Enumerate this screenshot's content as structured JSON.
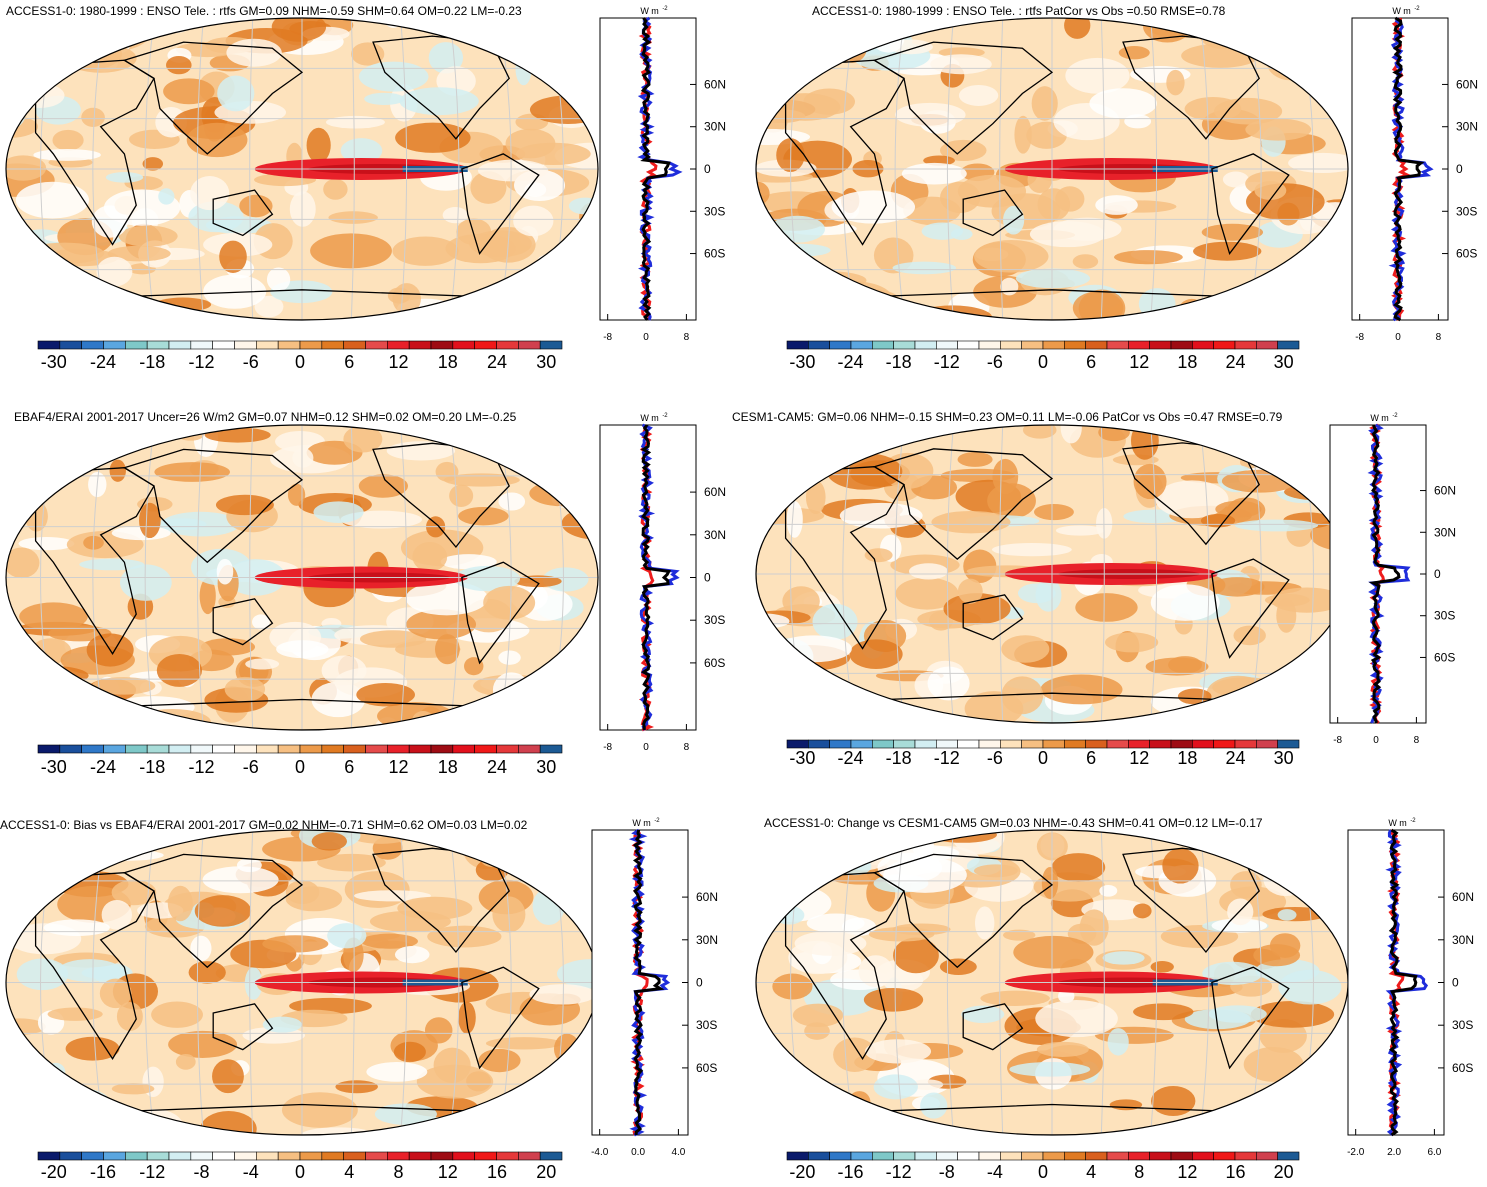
{
  "panels": [
    {
      "title": "ACCESS1-0: 1980-1999 : ENSO Tele. : rtfs GM=0.09 NHM=-0.59 SHM=0.64 OM=0.22 LM=-0.23",
      "profile_unit": "W m",
      "profile_unit_exp": "-2",
      "profile_xticks": [
        "-8",
        "0",
        "8"
      ],
      "lat_labels": [
        "60N",
        "30N",
        "0",
        "30S",
        "60S"
      ],
      "colorbar_labels": [
        "-30",
        "-24",
        "-18",
        "-12",
        "-6",
        "0",
        "6",
        "12",
        "18",
        "24",
        "30"
      ]
    },
    {
      "title": "ACCESS1-0: 1980-1999 : ENSO Tele. : rtfs PatCor vs Obs =0.50 RMSE=0.78",
      "profile_unit": "W m",
      "profile_unit_exp": "-2",
      "profile_xticks": [
        "-8",
        "0",
        "8"
      ],
      "lat_labels": [
        "60N",
        "30N",
        "0",
        "30S",
        "60S"
      ],
      "colorbar_labels": [
        "-30",
        "-24",
        "-18",
        "-12",
        "-6",
        "0",
        "6",
        "12",
        "18",
        "24",
        "30"
      ]
    },
    {
      "title": "EBAF4/ERAI 2001-2017 Uncer=26 W/m2 GM=0.07 NHM=0.12 SHM=0.02 OM=0.20 LM=-0.25",
      "profile_unit": "W m",
      "profile_unit_exp": "-2",
      "profile_xticks": [
        "-8",
        "0",
        "8"
      ],
      "lat_labels": [
        "60N",
        "30N",
        "0",
        "30S",
        "60S"
      ],
      "colorbar_labels": [
        "-30",
        "-24",
        "-18",
        "-12",
        "-6",
        "0",
        "6",
        "12",
        "18",
        "24",
        "30"
      ]
    },
    {
      "title": "CESM1-CAM5: GM=0.06 NHM=-0.15 SHM=0.23 OM=0.11 LM=-0.06 PatCor vs Obs =0.47 RMSE=0.79",
      "profile_unit": "W m",
      "profile_unit_exp": "-2",
      "profile_xticks": [
        "-8",
        "0",
        "8"
      ],
      "lat_labels": [
        "60N",
        "30N",
        "0",
        "30S",
        "60S"
      ],
      "colorbar_labels": [
        "-30",
        "-24",
        "-18",
        "-12",
        "-6",
        "0",
        "6",
        "12",
        "18",
        "24",
        "30"
      ]
    },
    {
      "title": "ACCESS1-0: Bias vs EBAF4/ERAI 2001-2017 GM=0.02 NHM=-0.71 SHM=0.62 OM=0.03 LM=0.02",
      "profile_unit": "W m",
      "profile_unit_exp": "-2",
      "profile_xticks": [
        "-4.0",
        "0.0",
        "4.0"
      ],
      "lat_labels": [
        "60N",
        "30N",
        "0",
        "30S",
        "60S"
      ],
      "colorbar_labels": [
        "-20",
        "-16",
        "-12",
        "-8",
        "-4",
        "0",
        "4",
        "8",
        "12",
        "16",
        "20"
      ]
    },
    {
      "title": "ACCESS1-0: Change vs CESM1-CAM5 GM=0.03 NHM=-0.43 SHM=0.41 OM=0.12 LM=-0.17",
      "profile_unit": "W m",
      "profile_unit_exp": "-2",
      "profile_xticks": [
        "-2.0",
        "2.0",
        "6.0"
      ],
      "lat_labels": [
        "60N",
        "30N",
        "0",
        "30S",
        "60S"
      ],
      "colorbar_labels": [
        "-20",
        "-16",
        "-12",
        "-8",
        "-4",
        "0",
        "4",
        "8",
        "12",
        "16",
        "20"
      ]
    }
  ],
  "colorbar_colors": [
    "#0a1a6b",
    "#1a4f9c",
    "#2f78c8",
    "#5aa6e0",
    "#7ec8c8",
    "#a8dcd8",
    "#d2eef2",
    "#f0f8fa",
    "#ffffff",
    "#fff6ea",
    "#fde2bc",
    "#f6bf82",
    "#ec9a4a",
    "#e07a22",
    "#d9601e",
    "#e54b4b",
    "#e8212a",
    "#c8101a",
    "#9e0c14",
    "#e2101c",
    "#f01818",
    "#e5383a",
    "#d0404e",
    "#1c5a94"
  ],
  "series_colors": {
    "blue": "#1f2ddb",
    "red": "#ee1c1c",
    "black": "#000000"
  }
}
